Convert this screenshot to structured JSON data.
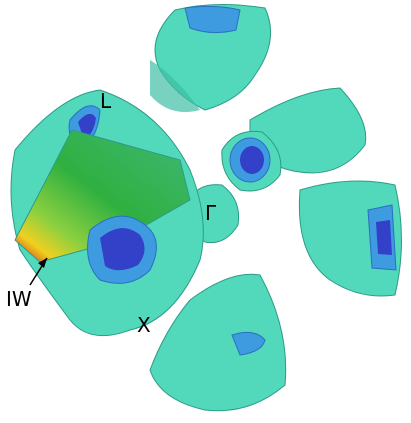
{
  "labels": {
    "l_point": "L",
    "gamma_point": "Γ",
    "iw_point": "IW",
    "x_point": "X"
  }
}
